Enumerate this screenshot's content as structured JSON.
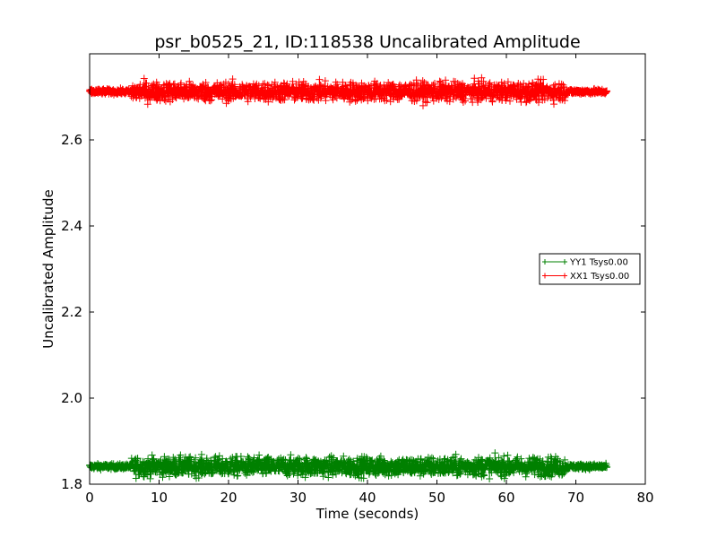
{
  "chart_data": {
    "type": "line",
    "title": "psr_b0525_21, ID:118538 Uncalibrated Amplitude",
    "xlabel": "Time (seconds)",
    "ylabel": "Uncalibrated Amplitude",
    "xlim": [
      0,
      80
    ],
    "ylim": [
      1.8,
      2.8
    ],
    "xticks": [
      0,
      10,
      20,
      30,
      40,
      50,
      60,
      70,
      80
    ],
    "yticks": [
      1.8,
      2.0,
      2.2,
      2.4,
      2.6
    ],
    "grid": false,
    "legend_position": "center-right",
    "series": [
      {
        "name": "YY1 Tsys0.00",
        "color": "#008000",
        "marker": "+",
        "baseline": 1.841,
        "segments": [
          {
            "x_range": [
              0,
              6
            ],
            "noise": 0.003
          },
          {
            "x_range": [
              6,
              68.5
            ],
            "noise": 0.011
          },
          {
            "x_range": [
              68.5,
              74.5
            ],
            "noise": 0.003
          }
        ]
      },
      {
        "name": "XX1 Tsys0.00",
        "color": "#ff0000",
        "marker": "+",
        "baseline": 2.712,
        "segments": [
          {
            "x_range": [
              0,
              6
            ],
            "noise": 0.003
          },
          {
            "x_range": [
              6,
              68.5
            ],
            "noise": 0.011
          },
          {
            "x_range": [
              68.5,
              74.5
            ],
            "noise": 0.003
          }
        ]
      }
    ]
  }
}
